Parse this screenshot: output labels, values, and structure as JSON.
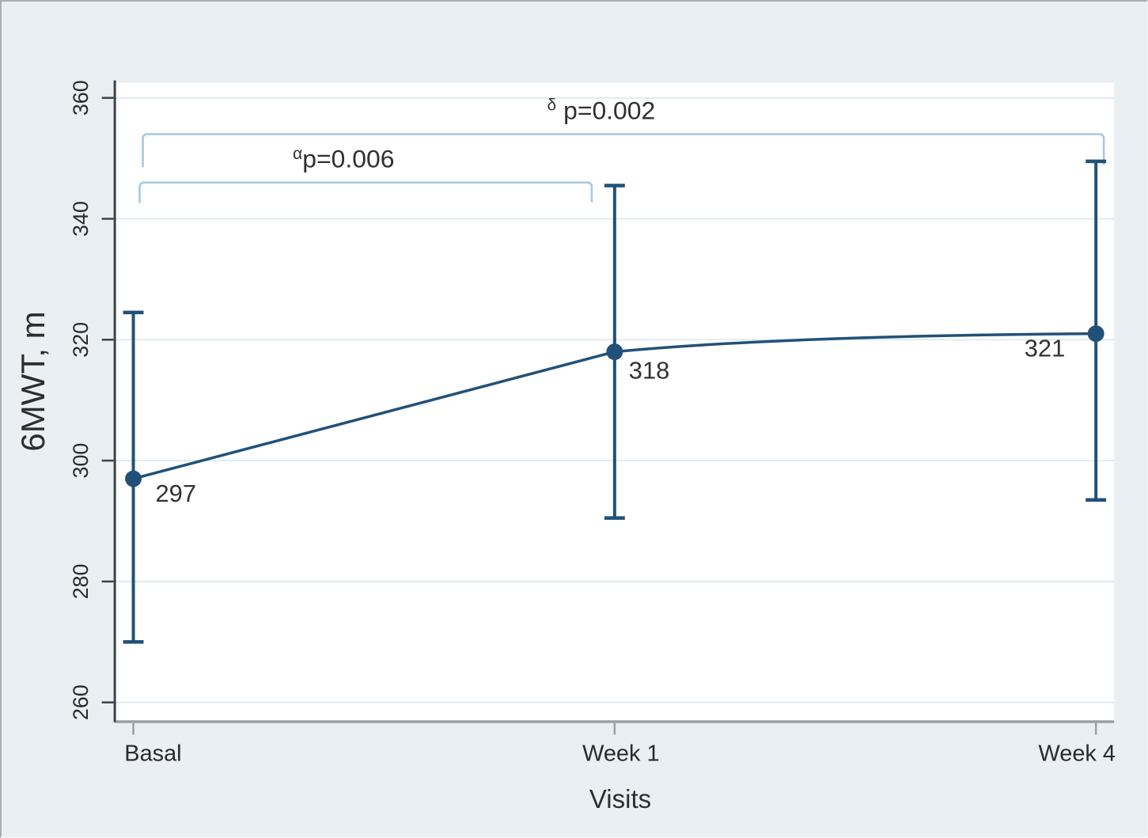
{
  "figure": {
    "background_color": "#e9eff2",
    "plot_background_color": "#ffffff",
    "border_color": "#a7adb0"
  },
  "chart_data": {
    "type": "line",
    "title": "",
    "xlabel": "Visits",
    "ylabel": "6MWT, m",
    "categories": [
      "Basal",
      "Week 1",
      "Week 4"
    ],
    "series": [
      {
        "name": "6MWT mean with error bars",
        "values": [
          297,
          318,
          321
        ],
        "value_labels": [
          "297",
          "318",
          "321"
        ],
        "error_low": [
          270,
          290.5,
          293.5
        ],
        "error_high": [
          324.5,
          345.5,
          349.5
        ],
        "color": "#215179"
      }
    ],
    "yticks": [
      260,
      280,
      300,
      320,
      340,
      360
    ],
    "ytick_labels": [
      "260",
      "280",
      "300",
      "320",
      "340",
      "360"
    ],
    "ylim": [
      257,
      362.5
    ],
    "grid": "horizontal",
    "gridline_color": "#e0ebf1",
    "y_axis_color": "#3e4244",
    "x_axis_color": "#9aa1a4",
    "text_color": "#303030",
    "legend": "none",
    "annotations": [
      {
        "superscript": "α",
        "label": "p=0.006",
        "from_category": "Basal",
        "to_category": "Week 1",
        "from": 0,
        "to": 1,
        "level": 346,
        "bracket_color": "#a5c7e4",
        "x_offsets": [
          8,
          -29
        ],
        "drops": [
          26,
          25
        ]
      },
      {
        "superscript": "δ",
        "label": " p=0.002",
        "from_category": "Basal",
        "to_category": "Week 4",
        "from": 0,
        "to": 2,
        "level": 354,
        "bracket_color": "#a5c7e4",
        "x_offsets": [
          12,
          10
        ],
        "drops": [
          42,
          39
        ]
      }
    ]
  }
}
